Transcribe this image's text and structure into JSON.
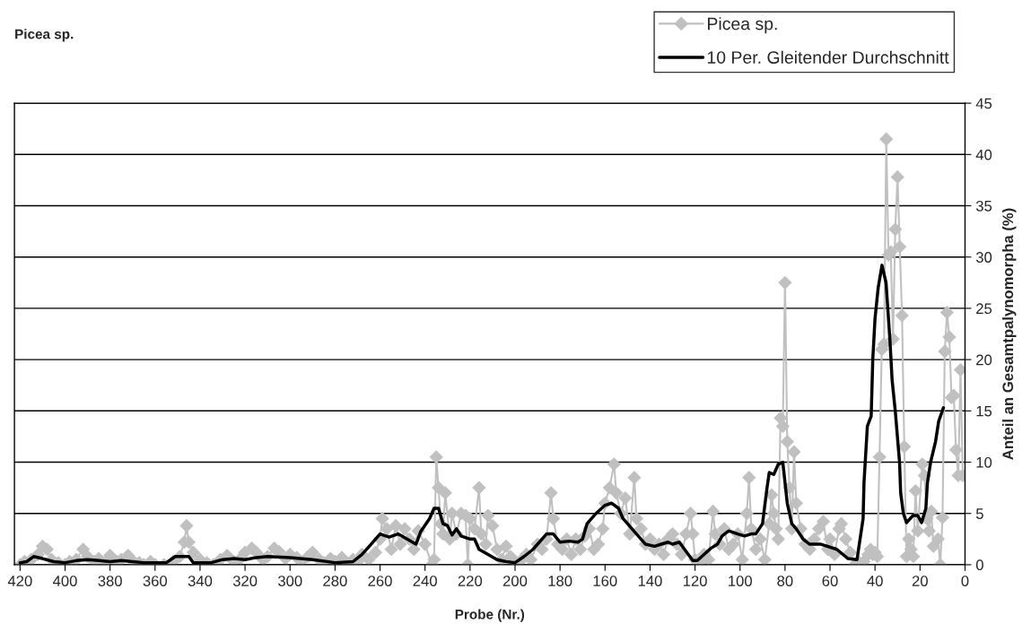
{
  "chart_data": {
    "type": "line",
    "title": "Picea sp.",
    "xlabel": "Probe (Nr.)",
    "ylabel": "Anteil an Gesamtpalynomorpha (%)",
    "xlim": [
      422.5,
      0
    ],
    "xticks": [
      420,
      400,
      380,
      360,
      340,
      320,
      300,
      280,
      260,
      240,
      220,
      200,
      180,
      160,
      140,
      120,
      100,
      80,
      60,
      40,
      20,
      0
    ],
    "ylim": [
      0,
      45
    ],
    "yticks": [
      0,
      5,
      10,
      15,
      20,
      25,
      30,
      35,
      40,
      45
    ],
    "grid": "y",
    "legend": "top right",
    "series": [
      {
        "name": "Picea sp.",
        "color": "#c0c0c0",
        "marker": "diamond",
        "line_style": "solid",
        "x": [
          420,
          418,
          415,
          412,
          410,
          408,
          406,
          403,
          400,
          398,
          395,
          392,
          390,
          387,
          385,
          382,
          380,
          377,
          375,
          372,
          370,
          367,
          365,
          362,
          360,
          356,
          352,
          349,
          347,
          346,
          345,
          343,
          340,
          337,
          334,
          331,
          328,
          325,
          322,
          320,
          317,
          315,
          312,
          310,
          307,
          305,
          302,
          300,
          297,
          295,
          292,
          290,
          287,
          285,
          282,
          280,
          277,
          275,
          272,
          270,
          268,
          265,
          262,
          260,
          259,
          257,
          255,
          253,
          251,
          249,
          247,
          245,
          243,
          240,
          237,
          236,
          235,
          234,
          233,
          232,
          231,
          229,
          228,
          226,
          224,
          222,
          221,
          220,
          218,
          216,
          215,
          213,
          212,
          210,
          208,
          206,
          204,
          202,
          200,
          197,
          195,
          193,
          190,
          188,
          186,
          184,
          183,
          181,
          179,
          177,
          175,
          173,
          171,
          169,
          167,
          165,
          163,
          161,
          160,
          158,
          156,
          155,
          153,
          151,
          149,
          147,
          146,
          144,
          142,
          140,
          138,
          136,
          134,
          132,
          130,
          128,
          126,
          124,
          122,
          121,
          120,
          118,
          116,
          114,
          112,
          111,
          109,
          107,
          105,
          103,
          101,
          99,
          97,
          96,
          95,
          93,
          91,
          89,
          87,
          86,
          85,
          84,
          83,
          82,
          81,
          80,
          79,
          78,
          77,
          76,
          75,
          73,
          71,
          69,
          67,
          65,
          63,
          61,
          60,
          58,
          56,
          55,
          53,
          51,
          49,
          47,
          45,
          43,
          42,
          41,
          40,
          39,
          38,
          37,
          36,
          35,
          34,
          33,
          32,
          31,
          30,
          29,
          28,
          27,
          26,
          25,
          24,
          23,
          22,
          21,
          19,
          18,
          17,
          16,
          15,
          14,
          12,
          11,
          10,
          9,
          8,
          7,
          6,
          5,
          4,
          3,
          2,
          1
        ],
        "values": [
          0,
          0.3,
          0.5,
          1.0,
          1.8,
          1.5,
          0.5,
          0.2,
          0,
          0.3,
          0.5,
          1.5,
          0.8,
          0.3,
          0.6,
          0.2,
          0.9,
          0.3,
          0.5,
          0.9,
          0.4,
          0.2,
          0,
          0.3,
          0,
          0,
          0.3,
          0.8,
          2.2,
          3.8,
          2.2,
          1.2,
          0.5,
          0.2,
          0,
          0.5,
          0.9,
          0.3,
          0.6,
          1.2,
          1.6,
          1.2,
          0.5,
          0.8,
          1.6,
          1.3,
          0.6,
          1.0,
          0.7,
          0.3,
          0.8,
          1.2,
          0.5,
          0.2,
          0.6,
          0.3,
          0.7,
          0.2,
          0.5,
          0.3,
          1.0,
          0.5,
          1.2,
          2.5,
          4.5,
          3.5,
          1.5,
          3.8,
          2.0,
          3.5,
          2.5,
          1.5,
          3.3,
          2.0,
          0,
          0.5,
          10.5,
          7.5,
          4.0,
          3.0,
          7.0,
          2.5,
          5.0,
          3.0,
          5.0,
          4.8,
          0,
          4.5,
          3.5,
          7.5,
          3.0,
          2.0,
          4.8,
          3.8,
          1.5,
          0.5,
          1.8,
          0.8,
          0.3,
          0.5,
          1.0,
          0.5,
          2.0,
          1.5,
          2.5,
          7.0,
          4.5,
          2.0,
          1.5,
          2.5,
          1.0,
          2.5,
          1.5,
          2.8,
          3.5,
          1.5,
          2.0,
          3.5,
          6.0,
          7.5,
          9.8,
          7.0,
          5.0,
          6.5,
          3.0,
          8.5,
          4.5,
          3.5,
          2.0,
          2.5,
          1.5,
          2.0,
          1.0,
          2.5,
          3.0,
          2.0,
          1.0,
          3.0,
          5.0,
          3.0,
          0.5,
          0.2,
          1.0,
          0.5,
          5.2,
          3.0,
          2.0,
          3.5,
          1.5,
          2.0,
          3.0,
          0.5,
          5.0,
          8.5,
          3.5,
          1.5,
          2.5,
          0.5,
          4.0,
          6.8,
          5.0,
          3.5,
          2.5,
          14.3,
          13.5,
          27.5,
          12.0,
          7.5,
          3.5,
          11.0,
          6.0,
          3.5,
          2.0,
          1.5,
          2.5,
          3.5,
          4.2,
          1.5,
          2.5,
          1.0,
          3.5,
          4.0,
          2.5,
          1.2,
          0,
          0.2,
          0.3,
          1.0,
          1.5,
          1.0,
          1.2,
          0.8,
          10.5,
          21.0,
          21.5,
          41.5,
          30.2,
          30.5,
          22.0,
          32.7,
          37.8,
          31.0,
          24.3,
          11.5,
          0.8,
          2.5,
          1.5,
          0.8,
          7.2,
          3.3,
          9.8,
          8.7,
          4.5,
          3.3,
          5.2,
          1.8,
          2.5,
          0,
          4.6,
          20.8,
          24.6,
          22.2,
          16.3,
          16.5,
          11.2,
          8.7,
          19.0,
          8.7
        ]
      },
      {
        "name": "10 Per. Gleitender Durchschnitt",
        "color": "#000000",
        "marker": "none",
        "line_style": "solid",
        "x": [
          420,
          417,
          414,
          410,
          405,
          400,
          395,
          390,
          385,
          380,
          375,
          370,
          365,
          360,
          355,
          351,
          345,
          343,
          335,
          330,
          325,
          320,
          315,
          310,
          300,
          290,
          280,
          272,
          268,
          264,
          260,
          256,
          252,
          248,
          244,
          242,
          238,
          236,
          234,
          232,
          230,
          228,
          226,
          224,
          220,
          218,
          216,
          212,
          208,
          204,
          200,
          196,
          192,
          188,
          186,
          183,
          180,
          176,
          172,
          170,
          168,
          164,
          160,
          157,
          154,
          152,
          148,
          146,
          142,
          138,
          135,
          132,
          130,
          127,
          124,
          121,
          119,
          116,
          113,
          110,
          108,
          105,
          101,
          98,
          95,
          93,
          90,
          88,
          87,
          85,
          83,
          81,
          79,
          77,
          75,
          72,
          69,
          64,
          57,
          52,
          48,
          45.3,
          44.9,
          43.4,
          41.7,
          41,
          40,
          38.6,
          36.9,
          35.1,
          33.4,
          32.4,
          31,
          29.1,
          28.6,
          27.4,
          26,
          23.1,
          21,
          19.3,
          17.4,
          16.7,
          15.3,
          13.1,
          11.7,
          9.6
        ],
        "values": [
          0.2,
          0.3,
          0.8,
          0.6,
          0.3,
          0.2,
          0.4,
          0.5,
          0.4,
          0.3,
          0.4,
          0.3,
          0.2,
          0.2,
          0.2,
          0.8,
          0.8,
          0.2,
          0.2,
          0.5,
          0.6,
          0.5,
          0.7,
          0.8,
          0.7,
          0.5,
          0.2,
          0.3,
          1.0,
          2.0,
          3.0,
          2.7,
          3.0,
          2.5,
          2.0,
          3.2,
          4.5,
          5.5,
          5.5,
          4.0,
          3.8,
          2.9,
          3.5,
          2.8,
          2.5,
          2.5,
          1.5,
          1.0,
          0.5,
          0.3,
          0.2,
          0.8,
          1.5,
          2.5,
          3.0,
          3.0,
          2.2,
          2.3,
          2.2,
          2.5,
          4.0,
          5.0,
          5.8,
          6.0,
          5.5,
          4.5,
          3.5,
          3.0,
          2.0,
          1.8,
          2.0,
          2.2,
          2.0,
          2.2,
          1.3,
          0.4,
          0.4,
          1.0,
          1.6,
          2.0,
          2.8,
          3.3,
          3.0,
          2.8,
          3.0,
          3.0,
          4.0,
          7.5,
          9.0,
          8.8,
          9.8,
          10.0,
          6.0,
          4.0,
          3.5,
          2.5,
          2.0,
          2.0,
          1.5,
          0.6,
          0.5,
          4.5,
          8.0,
          13.5,
          14.5,
          20.0,
          24.0,
          27.0,
          29.2,
          27.5,
          22.0,
          18.0,
          15.0,
          10.0,
          7.0,
          5.0,
          4.1,
          4.8,
          4.8,
          4.1,
          5.5,
          8.0,
          10.0,
          12.0,
          14.0,
          15.3
        ]
      }
    ]
  }
}
